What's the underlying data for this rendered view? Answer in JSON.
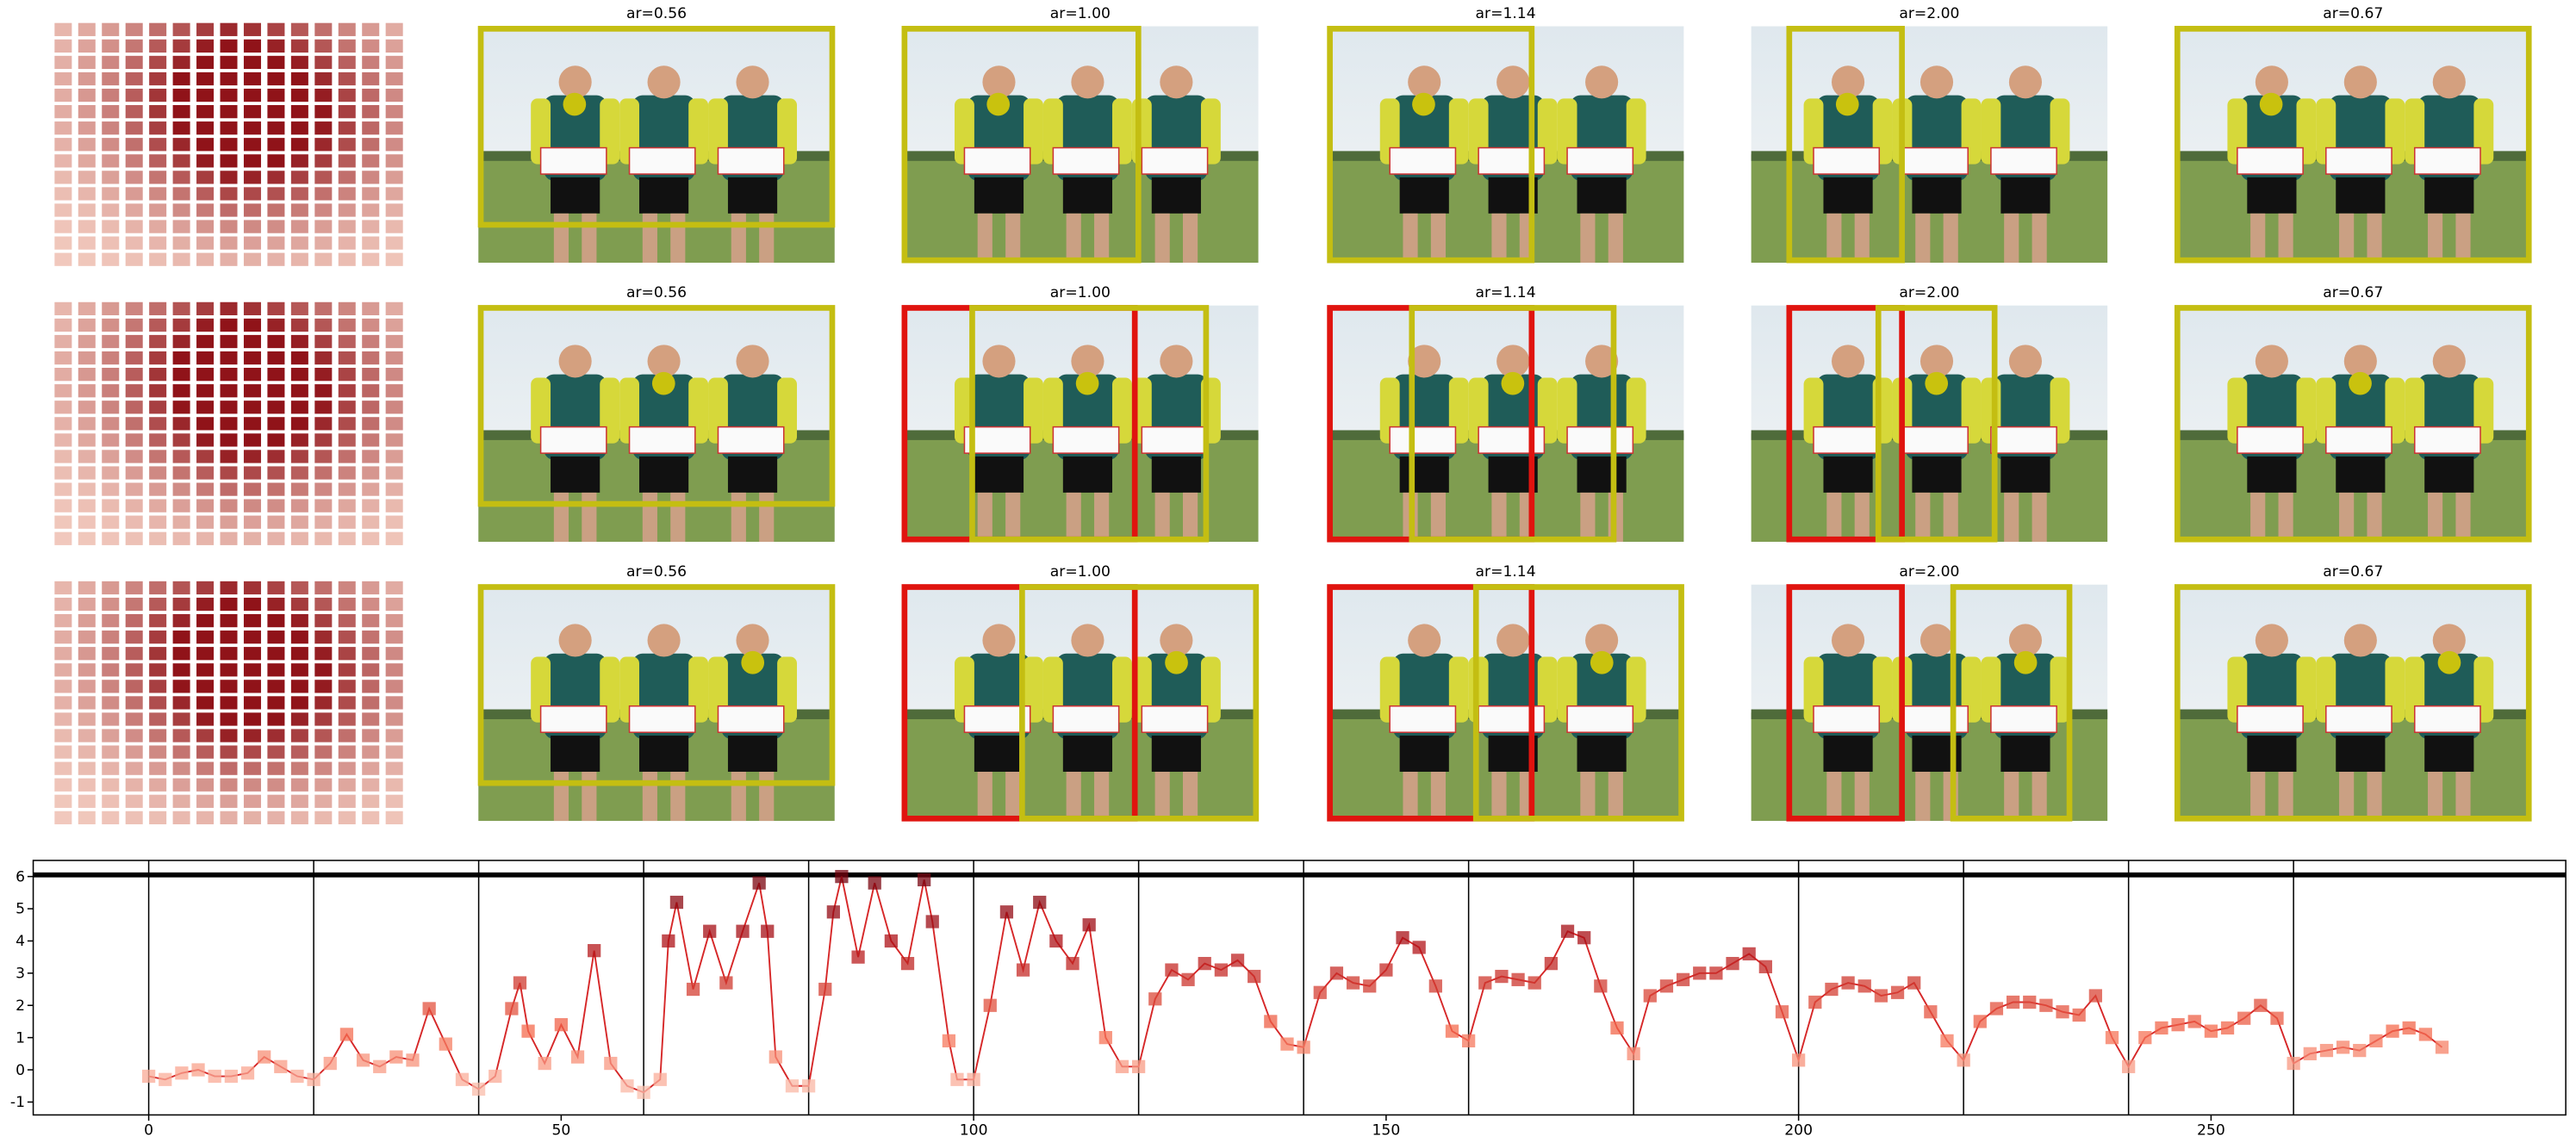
{
  "panels": {
    "rows": [
      {
        "titles": [
          "ar=0.56",
          "ar=1.00",
          "ar=1.14",
          "ar=2.00",
          "ar=0.67"
        ]
      },
      {
        "titles": [
          "ar=0.56",
          "ar=1.00",
          "ar=1.14",
          "ar=2.00",
          "ar=0.67"
        ]
      },
      {
        "titles": [
          "ar=0.56",
          "ar=1.00",
          "ar=1.14",
          "ar=2.00",
          "ar=0.67"
        ]
      }
    ]
  },
  "chart_data": {
    "type": "line",
    "x": [
      0,
      2,
      4,
      6,
      8,
      10,
      12,
      14,
      16,
      18,
      20,
      22,
      24,
      26,
      28,
      30,
      32,
      34,
      36,
      38,
      40,
      42,
      44,
      45,
      46,
      48,
      50,
      52,
      54,
      56,
      58,
      60,
      62,
      63,
      64,
      66,
      68,
      70,
      72,
      74,
      75,
      76,
      78,
      80,
      82,
      83,
      84,
      86,
      88,
      90,
      92,
      94,
      95,
      97,
      98,
      100,
      102,
      104,
      106,
      108,
      110,
      112,
      114,
      116,
      118,
      120,
      122,
      124,
      126,
      128,
      130,
      132,
      134,
      136,
      138,
      140,
      142,
      144,
      146,
      148,
      150,
      152,
      154,
      156,
      158,
      160,
      162,
      164,
      166,
      168,
      170,
      172,
      174,
      176,
      178,
      180,
      182,
      184,
      186,
      188,
      190,
      192,
      194,
      196,
      198,
      200,
      202,
      204,
      206,
      208,
      210,
      212,
      214,
      216,
      218,
      220,
      222,
      224,
      226,
      228,
      230,
      232,
      234,
      236,
      238,
      240,
      242,
      244,
      246,
      248,
      250,
      252,
      254,
      256,
      258,
      260,
      262,
      264,
      266,
      268,
      270,
      272,
      274,
      276,
      278
    ],
    "values": [
      -0.2,
      -0.3,
      -0.1,
      0.0,
      -0.2,
      -0.2,
      -0.1,
      0.4,
      0.1,
      -0.2,
      -0.3,
      0.2,
      1.1,
      0.3,
      0.1,
      0.4,
      0.3,
      1.9,
      0.8,
      -0.3,
      -0.6,
      -0.2,
      1.9,
      2.7,
      1.2,
      0.2,
      1.4,
      0.4,
      3.7,
      0.2,
      -0.5,
      -0.7,
      -0.3,
      4.0,
      5.2,
      2.5,
      4.3,
      2.7,
      4.3,
      5.8,
      4.3,
      0.4,
      -0.5,
      -0.5,
      2.5,
      4.9,
      6.0,
      3.5,
      5.8,
      4.0,
      3.3,
      5.9,
      4.6,
      0.9,
      -0.3,
      -0.3,
      2.0,
      4.9,
      3.1,
      5.2,
      4.0,
      3.3,
      4.5,
      1.0,
      0.1,
      0.1,
      2.2,
      3.1,
      2.8,
      3.3,
      3.1,
      3.4,
      2.9,
      1.5,
      0.8,
      0.7,
      2.4,
      3.0,
      2.7,
      2.6,
      3.1,
      4.1,
      3.8,
      2.6,
      1.2,
      0.9,
      2.7,
      2.9,
      2.8,
      2.7,
      3.3,
      4.3,
      4.1,
      2.6,
      1.3,
      0.5,
      2.3,
      2.6,
      2.8,
      3.0,
      3.0,
      3.3,
      3.6,
      3.2,
      1.8,
      0.3,
      2.1,
      2.5,
      2.7,
      2.6,
      2.3,
      2.4,
      2.7,
      1.8,
      0.9,
      0.3,
      1.5,
      1.9,
      2.1,
      2.1,
      2.0,
      1.8,
      1.7,
      2.3,
      1.0,
      0.1,
      1.0,
      1.3,
      1.4,
      1.5,
      1.2,
      1.3,
      1.6,
      2.0,
      1.6,
      0.2,
      0.5,
      0.6,
      0.7,
      0.6,
      0.9,
      1.2,
      1.3,
      1.1,
      0.7
    ],
    "color": "#d62728",
    "marker_colors": [
      "#fde0d2",
      "#f4694c",
      "#b11218",
      "#67000d"
    ],
    "xlim": [
      -14,
      293
    ],
    "ylim": [
      -1.4,
      6.5
    ],
    "xticks": [
      0,
      50,
      100,
      150,
      200,
      250
    ],
    "yticks": [
      -1,
      0,
      1,
      2,
      3,
      4,
      5,
      6
    ],
    "vlines": [
      0,
      20,
      40,
      60,
      80,
      100,
      120,
      140,
      160,
      180,
      200,
      220,
      240,
      260
    ],
    "hline": 6.05
  }
}
